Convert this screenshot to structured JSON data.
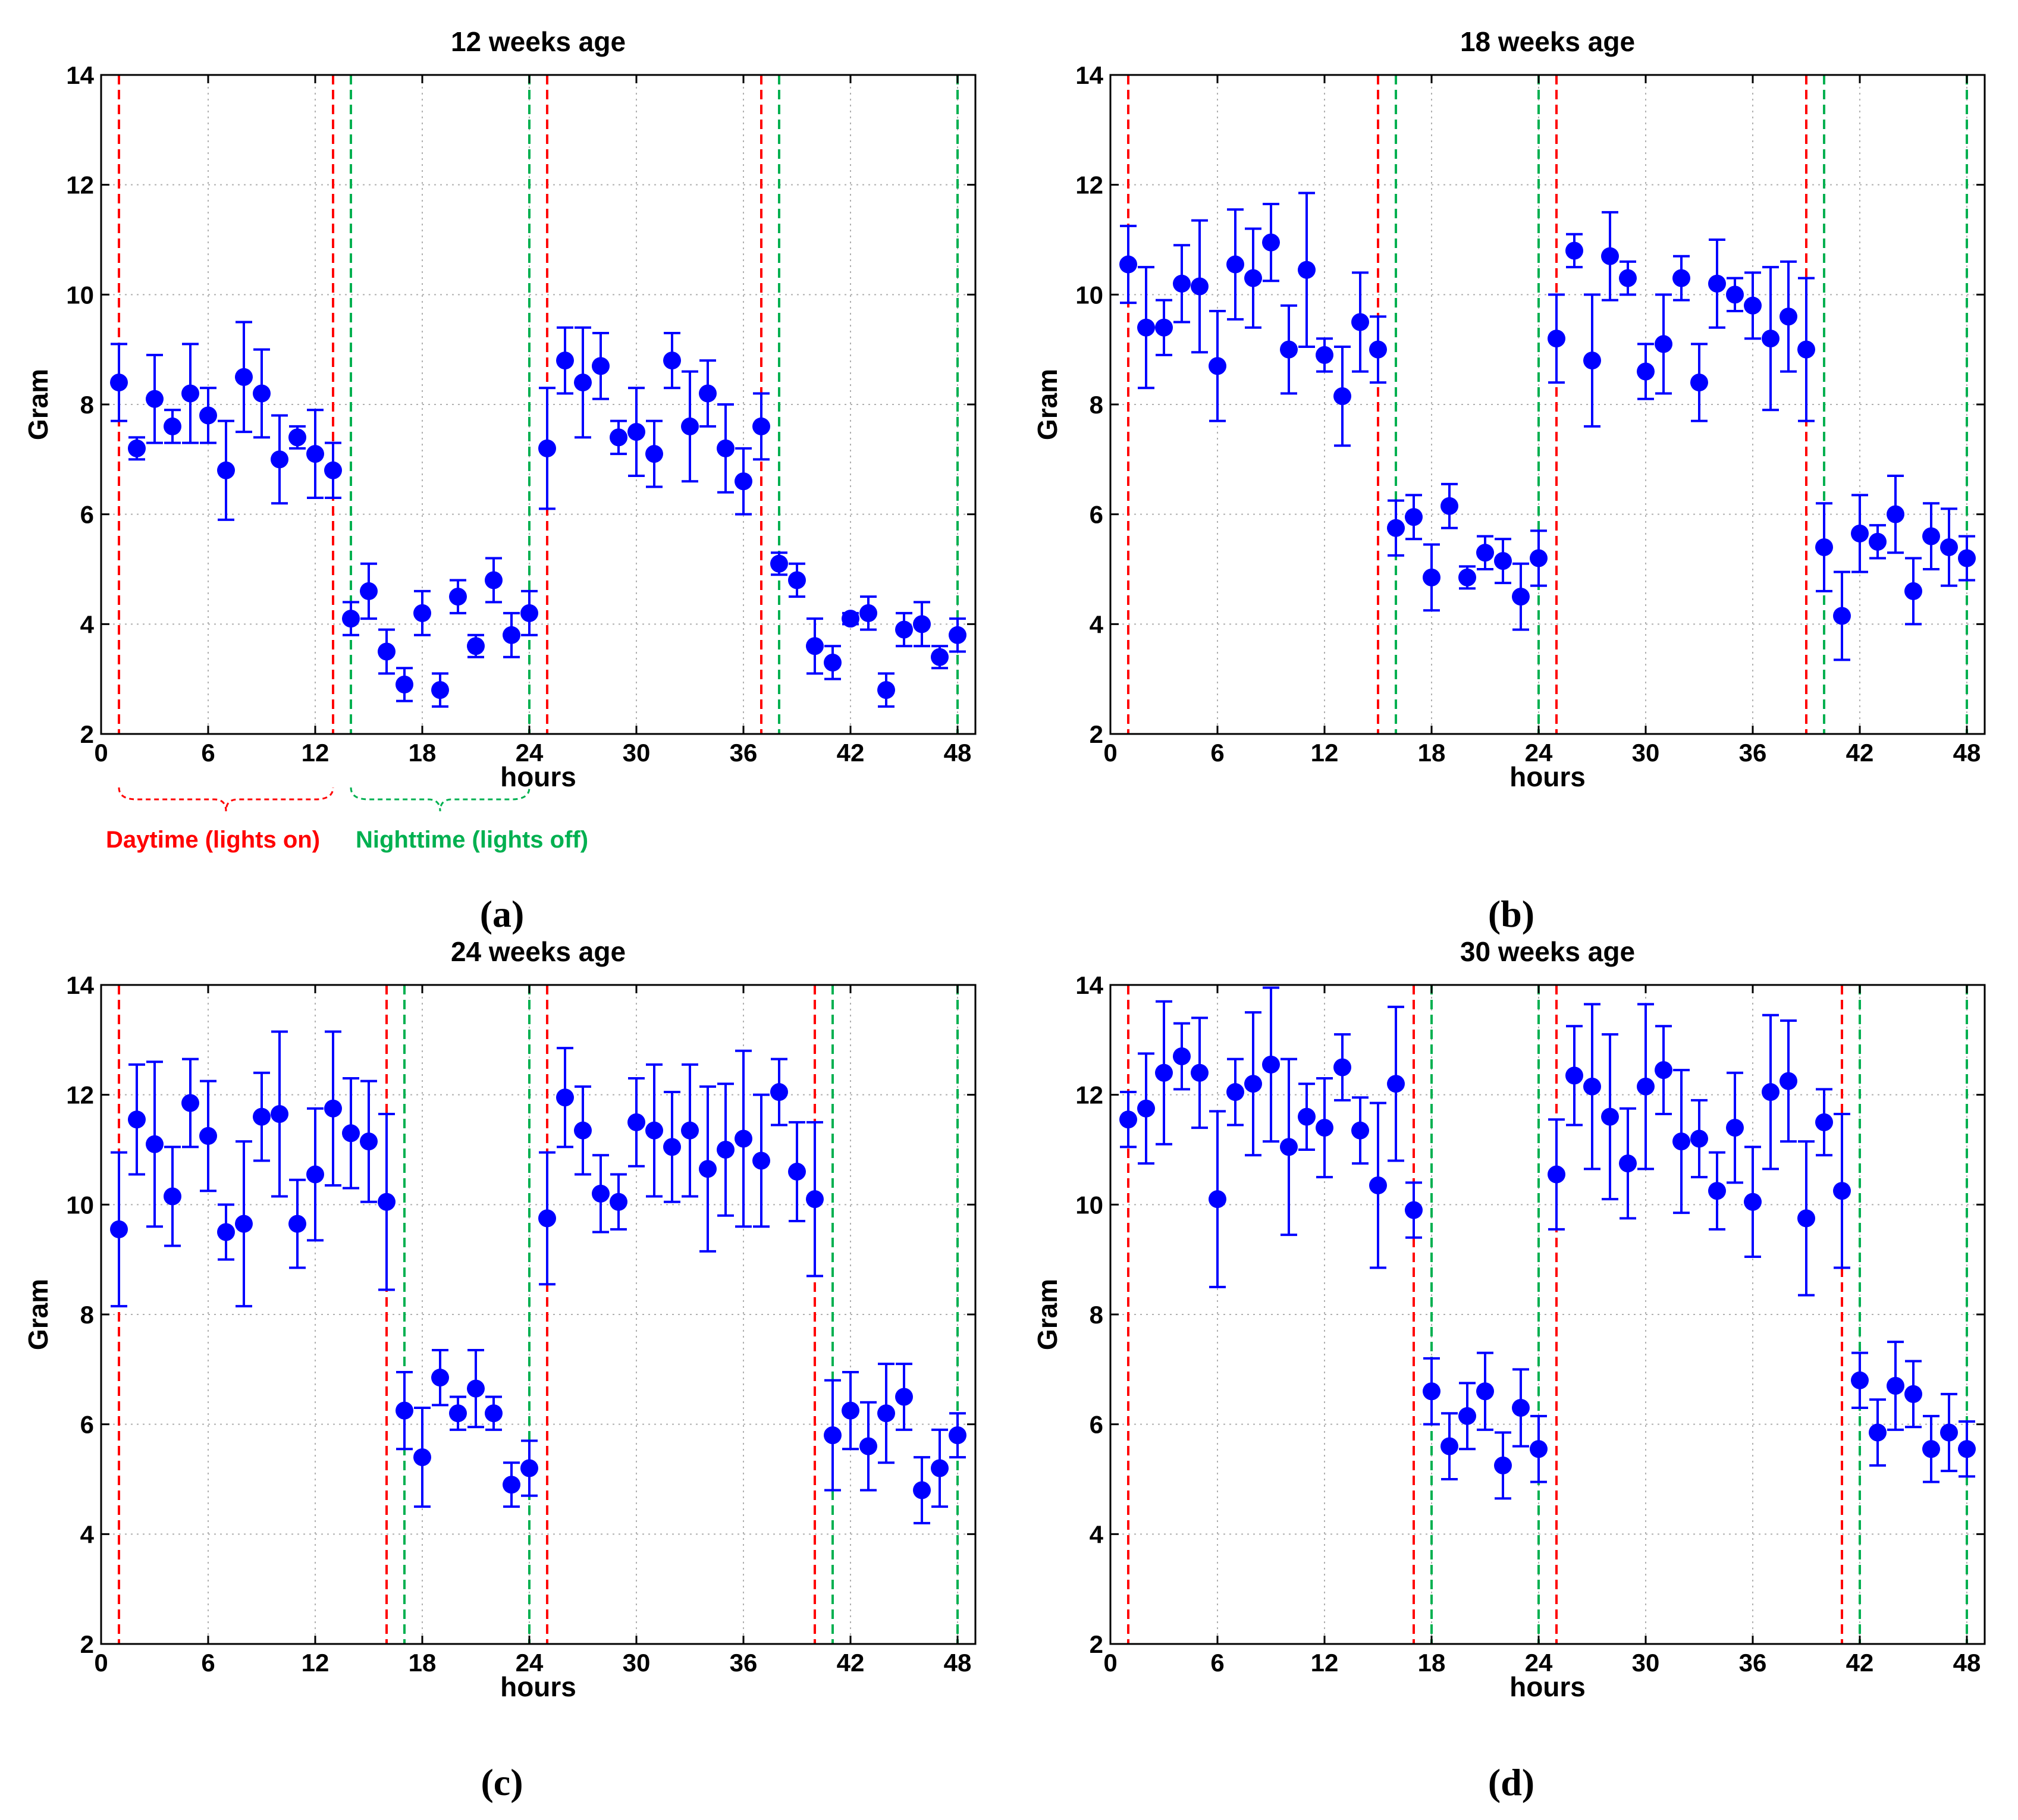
{
  "figure": {
    "captions": [
      "(a)",
      "(b)",
      "(c)",
      "(d)"
    ],
    "annotations": [
      {
        "text": "Daytime (lights on)",
        "color": "#ff0000"
      },
      {
        "text": "Nighttime (lights off)",
        "color": "#00b050"
      }
    ],
    "colors": {
      "marker": "#0000ff",
      "lights_on_line": "#ff0000",
      "lights_off_line": "#00b050",
      "grid": "#b0b0b0"
    }
  },
  "chart_data": [
    {
      "type": "scatter",
      "title": "12 weeks age",
      "xlabel": "hours",
      "ylabel": "Gram",
      "xlim": [
        0,
        49
      ],
      "ylim": [
        2,
        14
      ],
      "xticks": [
        0,
        6,
        12,
        18,
        24,
        30,
        36,
        42,
        48
      ],
      "yticks": [
        2,
        4,
        6,
        8,
        10,
        12,
        14
      ],
      "grid": true,
      "lights_on_lines": [
        1,
        13,
        25,
        37
      ],
      "lights_off_lines": [
        14,
        24,
        38,
        48
      ],
      "x": [
        1,
        2,
        3,
        4,
        5,
        6,
        7,
        8,
        9,
        10,
        11,
        12,
        13,
        14,
        15,
        16,
        17,
        18,
        19,
        20,
        21,
        22,
        23,
        24,
        25,
        26,
        27,
        28,
        29,
        30,
        31,
        32,
        33,
        34,
        35,
        36,
        37,
        38,
        39,
        40,
        41,
        42,
        43,
        44,
        45,
        46,
        47,
        48
      ],
      "y": [
        8.4,
        7.2,
        8.1,
        7.6,
        8.2,
        7.8,
        6.8,
        8.5,
        8.2,
        7.0,
        7.4,
        7.1,
        6.8,
        4.1,
        4.6,
        3.5,
        2.9,
        4.2,
        2.8,
        4.5,
        3.6,
        4.8,
        3.8,
        4.2,
        7.2,
        8.8,
        8.4,
        8.7,
        7.4,
        7.5,
        7.1,
        8.8,
        7.6,
        8.2,
        7.2,
        6.6,
        7.6,
        5.1,
        4.8,
        3.6,
        3.3,
        4.1,
        4.2,
        2.8,
        3.9,
        4.0,
        3.4,
        3.8
      ],
      "err": [
        0.7,
        0.2,
        0.8,
        0.3,
        0.9,
        0.5,
        0.9,
        1.0,
        0.8,
        0.8,
        0.2,
        0.8,
        0.5,
        0.3,
        0.5,
        0.4,
        0.3,
        0.4,
        0.3,
        0.3,
        0.2,
        0.4,
        0.4,
        0.4,
        1.1,
        0.6,
        1.0,
        0.6,
        0.3,
        0.8,
        0.6,
        0.5,
        1.0,
        0.6,
        0.8,
        0.6,
        0.6,
        0.2,
        0.3,
        0.5,
        0.3,
        0.1,
        0.3,
        0.3,
        0.3,
        0.4,
        0.2,
        0.3
      ]
    },
    {
      "type": "scatter",
      "title": "18 weeks age",
      "xlabel": "hours",
      "ylabel": "Gram",
      "xlim": [
        0,
        49
      ],
      "ylim": [
        2,
        14
      ],
      "xticks": [
        0,
        6,
        12,
        18,
        24,
        30,
        36,
        42,
        48
      ],
      "yticks": [
        2,
        4,
        6,
        8,
        10,
        12,
        14
      ],
      "grid": true,
      "lights_on_lines": [
        1,
        15,
        25,
        39
      ],
      "lights_off_lines": [
        16,
        24,
        40,
        48
      ],
      "x": [
        1,
        2,
        3,
        4,
        5,
        6,
        7,
        8,
        9,
        10,
        11,
        12,
        13,
        14,
        15,
        16,
        17,
        18,
        19,
        20,
        21,
        22,
        23,
        24,
        25,
        26,
        27,
        28,
        29,
        30,
        31,
        32,
        33,
        34,
        35,
        36,
        37,
        38,
        39,
        40,
        41,
        42,
        43,
        44,
        45,
        46,
        47,
        48
      ],
      "y": [
        10.55,
        9.4,
        9.4,
        10.2,
        10.15,
        8.7,
        10.55,
        10.3,
        10.95,
        9.0,
        10.45,
        8.9,
        8.15,
        9.5,
        9.0,
        5.75,
        5.95,
        4.85,
        6.15,
        4.85,
        5.3,
        5.15,
        4.5,
        5.2,
        9.2,
        10.8,
        8.8,
        10.7,
        10.3,
        8.6,
        9.1,
        10.3,
        8.4,
        10.2,
        10.0,
        9.8,
        9.2,
        9.6,
        9.0,
        5.4,
        4.15,
        5.65,
        5.5,
        6.0,
        4.6,
        5.6,
        5.4,
        5.2
      ],
      "err": [
        0.7,
        1.1,
        0.5,
        0.7,
        1.2,
        1.0,
        1.0,
        0.9,
        0.7,
        0.8,
        1.4,
        0.3,
        0.9,
        0.9,
        0.6,
        0.5,
        0.4,
        0.6,
        0.4,
        0.2,
        0.3,
        0.4,
        0.6,
        0.5,
        0.8,
        0.3,
        1.2,
        0.8,
        0.3,
        0.5,
        0.9,
        0.4,
        0.7,
        0.8,
        0.3,
        0.6,
        1.3,
        1.0,
        1.3,
        0.8,
        0.8,
        0.7,
        0.3,
        0.7,
        0.6,
        0.6,
        0.7,
        0.4
      ]
    },
    {
      "type": "scatter",
      "title": "24 weeks age",
      "xlabel": "hours",
      "ylabel": "Gram",
      "xlim": [
        0,
        49
      ],
      "ylim": [
        2,
        14
      ],
      "xticks": [
        0,
        6,
        12,
        18,
        24,
        30,
        36,
        42,
        48
      ],
      "yticks": [
        2,
        4,
        6,
        8,
        10,
        12,
        14
      ],
      "grid": true,
      "lights_on_lines": [
        1,
        16,
        25,
        40
      ],
      "lights_off_lines": [
        17,
        24,
        41,
        48
      ],
      "x": [
        1,
        2,
        3,
        4,
        5,
        6,
        7,
        8,
        9,
        10,
        11,
        12,
        13,
        14,
        15,
        16,
        17,
        18,
        19,
        20,
        21,
        22,
        23,
        24,
        25,
        26,
        27,
        28,
        29,
        30,
        31,
        32,
        33,
        34,
        35,
        36,
        37,
        38,
        39,
        40,
        41,
        42,
        43,
        44,
        45,
        46,
        47,
        48
      ],
      "y": [
        9.55,
        11.55,
        11.1,
        10.15,
        11.85,
        11.25,
        9.5,
        9.65,
        11.6,
        11.65,
        9.65,
        10.55,
        11.75,
        11.3,
        11.15,
        10.05,
        6.25,
        5.4,
        6.85,
        6.2,
        6.65,
        6.2,
        4.9,
        5.2,
        9.75,
        11.95,
        11.35,
        10.2,
        10.05,
        11.5,
        11.35,
        11.05,
        11.35,
        10.65,
        11.0,
        11.2,
        10.8,
        12.05,
        10.6,
        10.1,
        5.8,
        6.25,
        5.6,
        6.2,
        6.5,
        4.8,
        5.2,
        5.8
      ],
      "err": [
        1.4,
        1.0,
        1.5,
        0.9,
        0.8,
        1.0,
        0.5,
        1.5,
        0.8,
        1.5,
        0.8,
        1.2,
        1.4,
        1.0,
        1.1,
        1.6,
        0.7,
        0.9,
        0.5,
        0.3,
        0.7,
        0.3,
        0.4,
        0.5,
        1.2,
        0.9,
        0.8,
        0.7,
        0.5,
        0.8,
        1.2,
        1.0,
        1.2,
        1.5,
        1.2,
        1.6,
        1.2,
        0.6,
        0.9,
        1.4,
        1.0,
        0.7,
        0.8,
        0.9,
        0.6,
        0.6,
        0.7,
        0.4
      ]
    },
    {
      "type": "scatter",
      "title": "30 weeks age",
      "xlabel": "hours",
      "ylabel": "Gram",
      "xlim": [
        0,
        49
      ],
      "ylim": [
        2,
        14
      ],
      "xticks": [
        0,
        6,
        12,
        18,
        24,
        30,
        36,
        42,
        48
      ],
      "yticks": [
        2,
        4,
        6,
        8,
        10,
        12,
        14
      ],
      "grid": true,
      "lights_on_lines": [
        1,
        17,
        25,
        41
      ],
      "lights_off_lines": [
        18,
        24,
        42,
        48
      ],
      "x": [
        1,
        2,
        3,
        4,
        5,
        6,
        7,
        8,
        9,
        10,
        11,
        12,
        13,
        14,
        15,
        16,
        17,
        18,
        19,
        20,
        21,
        22,
        23,
        24,
        25,
        26,
        27,
        28,
        29,
        30,
        31,
        32,
        33,
        34,
        35,
        36,
        37,
        38,
        39,
        40,
        41,
        42,
        43,
        44,
        45,
        46,
        47,
        48
      ],
      "y": [
        11.55,
        11.75,
        12.4,
        12.7,
        12.4,
        10.1,
        12.05,
        12.2,
        12.55,
        11.05,
        11.6,
        11.4,
        12.5,
        11.35,
        10.35,
        12.2,
        9.9,
        6.6,
        5.6,
        6.15,
        6.6,
        5.25,
        6.3,
        5.55,
        10.55,
        12.35,
        12.15,
        11.6,
        10.75,
        12.15,
        12.45,
        11.15,
        11.2,
        10.25,
        11.4,
        10.05,
        12.05,
        12.25,
        9.75,
        11.5,
        10.25,
        6.8,
        5.85,
        6.7,
        6.55,
        5.55,
        5.85,
        5.55
      ],
      "err": [
        0.5,
        1.0,
        1.3,
        0.6,
        1.0,
        1.6,
        0.6,
        1.3,
        1.4,
        1.6,
        0.6,
        0.9,
        0.6,
        0.6,
        1.5,
        1.4,
        0.5,
        0.6,
        0.6,
        0.6,
        0.7,
        0.6,
        0.7,
        0.6,
        1.0,
        0.9,
        1.5,
        1.5,
        1.0,
        1.5,
        0.8,
        1.3,
        0.7,
        0.7,
        1.0,
        1.0,
        1.4,
        1.1,
        1.4,
        0.6,
        1.4,
        0.5,
        0.6,
        0.8,
        0.6,
        0.6,
        0.7,
        0.5
      ]
    }
  ]
}
